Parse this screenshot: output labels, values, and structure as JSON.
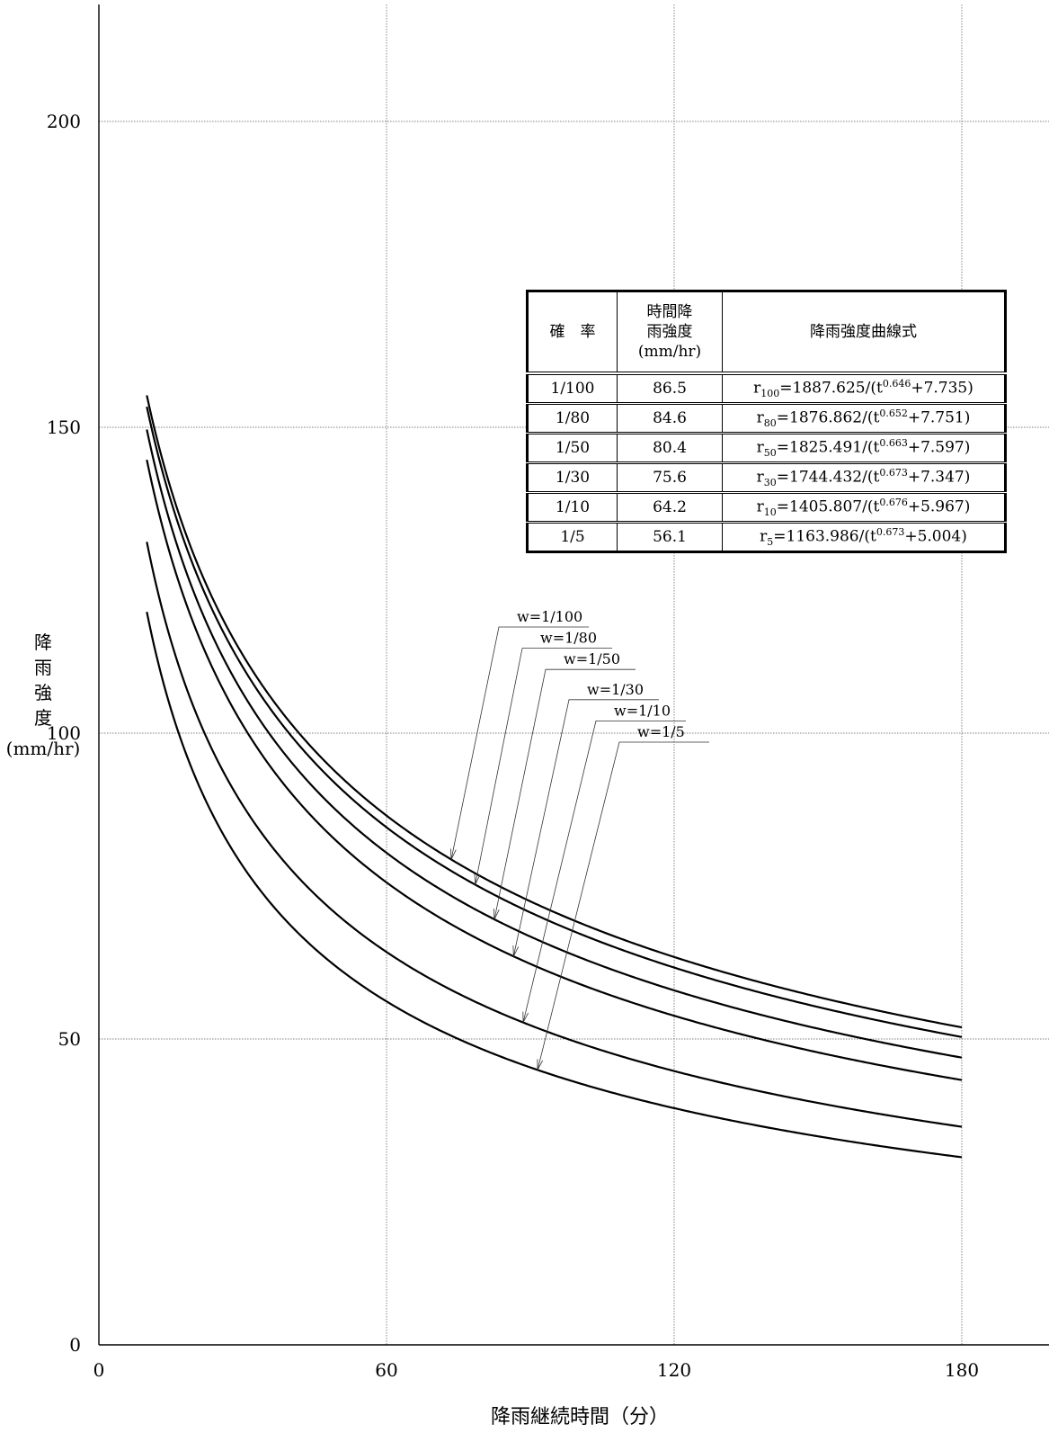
{
  "chart_data": {
    "type": "line",
    "title": "",
    "xlabel": "降雨継続時間（分）",
    "ylabel": "降雨強度",
    "ylabel_unit": "(mm/hr)",
    "xlim": [
      0,
      200
    ],
    "ylim": [
      0,
      220
    ],
    "x_ticks": [
      "0",
      "60",
      "120",
      "180"
    ],
    "y_ticks": [
      "0",
      "50",
      "100",
      "150",
      "200"
    ],
    "grid": true,
    "x_range": [
      10,
      180
    ],
    "series": [
      {
        "name": "w=1/100",
        "a": 1887.625,
        "n": 0.646,
        "b": 7.735
      },
      {
        "name": "w=1/80",
        "a": 1876.862,
        "n": 0.652,
        "b": 7.751
      },
      {
        "name": "w=1/50",
        "a": 1825.491,
        "n": 0.663,
        "b": 7.597
      },
      {
        "name": "w=1/30",
        "a": 1744.432,
        "n": 0.673,
        "b": 7.347
      },
      {
        "name": "w=1/10",
        "a": 1405.807,
        "n": 0.676,
        "b": 5.967
      },
      {
        "name": "w=1/5",
        "a": 1163.986,
        "n": 0.673,
        "b": 5.004
      }
    ],
    "callout_targets_x": [
      73.5,
      78.5,
      82.5,
      86.5,
      88.5,
      91.5
    ]
  },
  "table": {
    "headers": {
      "probability": "確　率",
      "hourly_lines": [
        "時間降",
        "雨強度",
        "(mm/hr)"
      ],
      "formula": "降雨強度曲線式"
    },
    "rows": [
      {
        "prob": "1/100",
        "val": "86.5",
        "r": "r",
        "sub": "100",
        "coef": "=1887.625/(t",
        "exp": "0.646",
        "tail": "+7.735)"
      },
      {
        "prob": "1/80",
        "val": "84.6",
        "r": "r",
        "sub": "80",
        "coef": "=1876.862/(t",
        "exp": "0.652",
        "tail": "+7.751)"
      },
      {
        "prob": "1/50",
        "val": "80.4",
        "r": "r",
        "sub": "50",
        "coef": "=1825.491/(t",
        "exp": "0.663",
        "tail": "+7.597)"
      },
      {
        "prob": "1/30",
        "val": "75.6",
        "r": "r",
        "sub": "30",
        "coef": "=1744.432/(t",
        "exp": "0.673",
        "tail": "+7.347)"
      },
      {
        "prob": "1/10",
        "val": "64.2",
        "r": "r",
        "sub": "10",
        "coef": "=1405.807/(t",
        "exp": "0.676",
        "tail": "+5.967)"
      },
      {
        "prob": "1/5",
        "val": "56.1",
        "r": "r",
        "sub": "5",
        "coef": "=1163.986/(t",
        "exp": "0.673",
        "tail": "+5.004)"
      }
    ]
  }
}
